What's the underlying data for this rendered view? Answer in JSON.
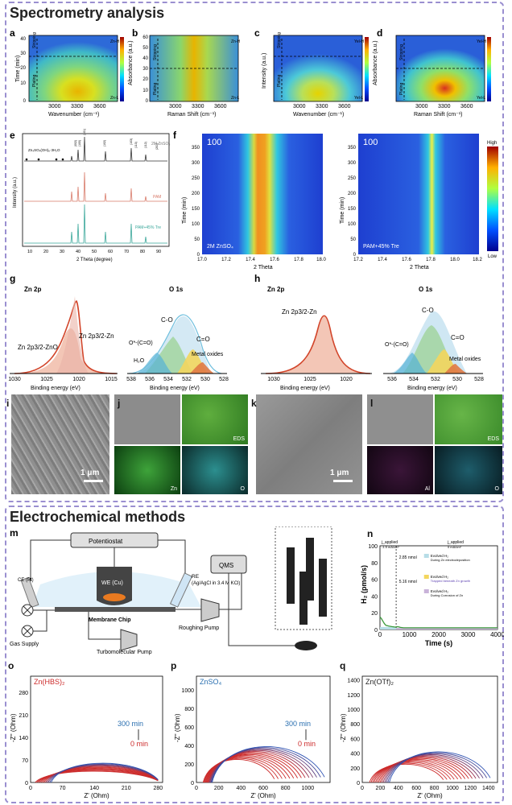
{
  "sections": {
    "spectrometry_title": "Spectrometry analysis",
    "electrochem_title": "Electrochemical methods"
  },
  "panel_labels": {
    "a": "a",
    "b": "b",
    "c": "c",
    "d": "d",
    "e": "e",
    "f": "f",
    "g": "g",
    "h": "h",
    "i": "i",
    "j": "j",
    "k": "k",
    "l": "l",
    "m": "m",
    "n": "n",
    "o": "o",
    "p": "p",
    "q": "q"
  },
  "heatmaps_top": {
    "ylabel_time": "Time (min)",
    "ylabel_abs": "Absorbance (a.u.)",
    "ylabel_int": "Intensity (a.u.)",
    "wavenumber_label": "Wavenumber (cm⁻¹)",
    "raman_label": "Raman Shift (cm⁻¹)",
    "x_ticks": [
      "3000",
      "3300",
      "3600"
    ],
    "y_ticks": [
      "10",
      "20",
      "30",
      "40",
      "50",
      "60"
    ],
    "stripping": "Stripping",
    "plating": "Plating",
    "cb_hi_a": "Zn-H",
    "cb_lo_a": "Zn-L",
    "cb_hi_c": "Yel-H",
    "cb_lo_c": "Yel-L"
  },
  "xrd": {
    "ylabel": "Intensity (a.u.)",
    "xlabel": "2 Theta (degree)",
    "x_ticks": [
      "10",
      "20",
      "30",
      "40",
      "50",
      "60",
      "70",
      "80",
      "90"
    ],
    "series_top": "2M ZnSO₄",
    "series_mid": "PAM",
    "series_bot": "PAM+45% Tre",
    "phase": "Zn₄SO₄(OH)₆·3H₂O",
    "peaks": [
      "(002)",
      "(100)",
      "(101)",
      "(102)",
      "(103)",
      "(110)",
      "(112)",
      "(201)"
    ]
  },
  "insitu": {
    "ylabel": "Time (min)",
    "xlabel": "2 Theta",
    "left_peak": "100",
    "right_peak": "100",
    "left_label": "2M ZnSO₄",
    "right_label": "PAM+45% Tre",
    "left_x_ticks": [
      "17.0",
      "17.2",
      "17.4",
      "17.6",
      "17.8",
      "18.0"
    ],
    "right_x_ticks": [
      "17.2",
      "17.4",
      "17.6",
      "17.8",
      "18.0",
      "18.2"
    ],
    "y_ticks": [
      "0",
      "50",
      "100",
      "150",
      "200",
      "250",
      "300",
      "350"
    ],
    "cb_high": "High",
    "cb_low": "Low"
  },
  "xps_g": {
    "zn_title": "Zn 2p",
    "o_title": "O 1s",
    "xlabel": "Binding energy (eV)",
    "zn_ticks": [
      "1030",
      "1025",
      "1020",
      "1015"
    ],
    "o_ticks": [
      "538",
      "536",
      "534",
      "532",
      "530",
      "528"
    ],
    "zno": "Zn 2p3/2-ZnO",
    "zn": "Zn 2p3/2-Zn",
    "co": "C-O",
    "cdo": "C=O",
    "oco": "O*-(C=O)",
    "h2o": "H₂O",
    "metal": "Metal oxides"
  },
  "xps_h": {
    "zn_title": "Zn 2p",
    "o_title": "O 1s",
    "xlabel": "Binding energy (eV)",
    "xlabel_o": "Binding energy (eV)",
    "zn_ticks": [
      "1030",
      "1025",
      "1020"
    ],
    "o_ticks": [
      "536",
      "534",
      "532",
      "530",
      "528"
    ],
    "zn": "Zn 2p3/2-Zn",
    "co": "C-O",
    "cdo": "C=O",
    "oco": "O*-(C=O)",
    "metal": "Metal oxides"
  },
  "sem": {
    "scale": "1 μm",
    "eds": "EDS",
    "zn": "Zn",
    "o": "O",
    "al": "Al"
  },
  "setup": {
    "potentiostat": "Potentiostat",
    "ce": "CE (Pt)",
    "we": "WE (Cu)",
    "re": "RE",
    "re_sub": "(Ag/AgCl in 3.4 M KCl)",
    "chip": "Membrane Chip",
    "gas": "Gas Supply",
    "roughing": "Roughing Pump",
    "turbo": "Turbomolecular Pump",
    "qms": "QMS"
  },
  "chart_data": [
    {
      "id": "n",
      "type": "line",
      "title": "",
      "xlabel": "Time (s)",
      "ylabel": "H₂ (pmol/s)",
      "xlim": [
        0,
        4000
      ],
      "ylim": [
        0,
        100
      ],
      "x_ticks": [
        0,
        1000,
        2000,
        3000,
        4000
      ],
      "y_ticks": [
        0,
        20,
        40,
        60,
        80,
        100
      ],
      "series": [
        {
          "name": "H2",
          "x": [
            0,
            50,
            100,
            150,
            200,
            300,
            400,
            500,
            550,
            600,
            650,
            700,
            800,
            1000,
            1500,
            2000,
            3000,
            4000
          ],
          "y": [
            15,
            13,
            10,
            7,
            5,
            4,
            3.5,
            3,
            2.8,
            3.5,
            3,
            2.5,
            2,
            2,
            2,
            2,
            2,
            2
          ]
        }
      ],
      "annotations": {
        "applied_a": "j_applied",
        "applied_a_val": "-1.5 mA/cm²",
        "applied_b": "j_applied",
        "applied_b_val": "0 mA/cm²",
        "n1": "2.85 nmol",
        "n2": "5.16 nmol",
        "leg1": "Evolved H₂",
        "leg1b": "During Zn electrodeposition",
        "leg2": "Evolved H₂",
        "leg2b": "Trapped beneath Zn growth",
        "leg3": "Evolved H₂",
        "leg3b": "During Corrosion of Zn"
      }
    },
    {
      "id": "o",
      "type": "scatter",
      "title": "Zn(HBS)₂",
      "xlabel": "Z' (Ohm)",
      "ylabel": "-Z'' (Ohm)",
      "xlim": [
        0,
        290
      ],
      "ylim": [
        0,
        330
      ],
      "x_ticks": [
        0,
        70,
        140,
        210,
        280
      ],
      "y_ticks": [
        0,
        70,
        140,
        210,
        280
      ],
      "time_top": "300 min",
      "time_bottom": "0 min",
      "arcs": {
        "count": 12,
        "start_x_min": 10,
        "start_x_max": 45,
        "end_x": 280,
        "peak_y_min": 35,
        "peak_y_max": 60
      }
    },
    {
      "id": "p",
      "type": "scatter",
      "title": "ZnSO₄",
      "xlabel": "Z' (Ohm)",
      "ylabel": "-Z'' (Ohm)",
      "xlim": [
        0,
        1200
      ],
      "ylim": [
        0,
        1150
      ],
      "x_ticks": [
        0,
        200,
        400,
        600,
        800,
        1000
      ],
      "y_ticks": [
        0,
        200,
        400,
        600,
        800,
        1000
      ],
      "time_top": "300 min",
      "time_bottom": "0 min",
      "arcs": {
        "count": 14,
        "start_x_min": 60,
        "start_x_max": 140,
        "end_x_min": 700,
        "end_x_max": 1150,
        "peak_y_min": 250,
        "peak_y_max": 390
      }
    },
    {
      "id": "q",
      "type": "scatter",
      "title": "Zn(OTf)₂",
      "xlabel": "Z' (Ohm)",
      "ylabel": "-Z'' (Ohm)",
      "xlim": [
        0,
        1500
      ],
      "ylim": [
        0,
        1450
      ],
      "x_ticks": [
        0,
        200,
        400,
        600,
        800,
        1000,
        1200,
        1400
      ],
      "y_ticks": [
        0,
        200,
        400,
        600,
        800,
        1000,
        1200,
        1400
      ],
      "arcs": {
        "count": 14,
        "start_x_min": 80,
        "start_x_max": 300,
        "end_x_min": 900,
        "end_x_max": 1420,
        "peak_y_min": 250,
        "peak_y_max": 420
      }
    }
  ]
}
